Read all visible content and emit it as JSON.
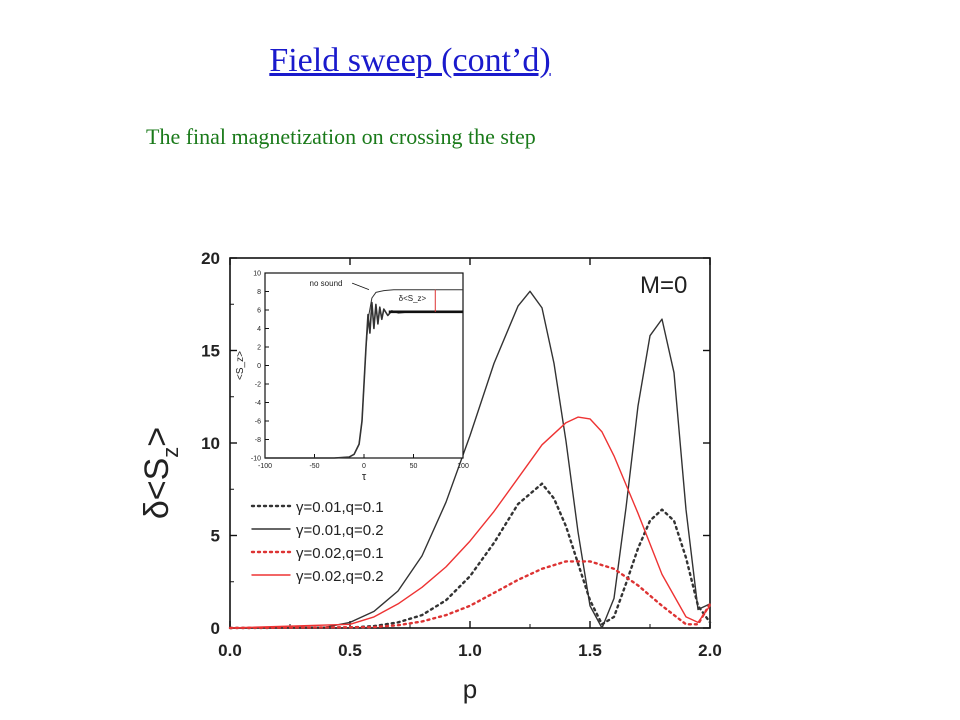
{
  "slide": {
    "title": "Field sweep (cont’d)",
    "subtitle": "The final magnetization on crossing the step"
  },
  "chart_data": [
    {
      "type": "line",
      "title": "",
      "annotation": "M=0",
      "xlabel": "p",
      "ylabel": "δ<S_z>",
      "ylabel_parts": {
        "main": "δ<S",
        "sub": "z",
        "tail": ">"
      },
      "xlim": [
        0.0,
        2.0
      ],
      "ylim": [
        0,
        20
      ],
      "xticks": [
        "0.0",
        "0.5",
        "1.0",
        "1.5",
        "2.0"
      ],
      "yticks": [
        "0",
        "5",
        "10",
        "15",
        "20"
      ],
      "legend_position": "center-left",
      "series": [
        {
          "name": "γ=0.01,q=0.1",
          "color": "#333333",
          "dash": "dotted",
          "x": [
            0.0,
            0.5,
            0.6,
            0.7,
            0.8,
            0.9,
            1.0,
            1.1,
            1.2,
            1.3,
            1.35,
            1.4,
            1.45,
            1.5,
            1.55,
            1.6,
            1.65,
            1.7,
            1.75,
            1.8,
            1.85,
            1.9,
            1.95,
            2.0
          ],
          "y": [
            0,
            0.02,
            0.1,
            0.3,
            0.7,
            1.5,
            2.8,
            4.6,
            6.7,
            7.8,
            7.0,
            5.5,
            3.5,
            1.5,
            0.2,
            0.6,
            2.4,
            4.3,
            5.8,
            6.4,
            5.8,
            3.8,
            1.2,
            0.3
          ]
        },
        {
          "name": "γ=0.01,q=0.2",
          "color": "#333333",
          "dash": "solid",
          "x": [
            0.0,
            0.4,
            0.5,
            0.6,
            0.7,
            0.8,
            0.9,
            1.0,
            1.1,
            1.2,
            1.25,
            1.3,
            1.35,
            1.4,
            1.45,
            1.5,
            1.55,
            1.6,
            1.65,
            1.7,
            1.75,
            1.8,
            1.85,
            1.9,
            1.95,
            2.0
          ],
          "y": [
            0,
            0.05,
            0.3,
            0.9,
            2.0,
            3.9,
            6.8,
            10.4,
            14.3,
            17.4,
            18.2,
            17.3,
            14.3,
            10.1,
            5.2,
            1.2,
            0.0,
            1.6,
            6.5,
            12.0,
            15.8,
            16.7,
            13.8,
            6.4,
            1.0,
            1.3
          ]
        },
        {
          "name": "γ=0.02,q=0.1",
          "color": "#dd3333",
          "dash": "dotted",
          "x": [
            0.0,
            0.6,
            0.7,
            0.8,
            0.9,
            1.0,
            1.1,
            1.2,
            1.3,
            1.4,
            1.5,
            1.6,
            1.7,
            1.8,
            1.9,
            1.95,
            2.0
          ],
          "y": [
            0,
            0.05,
            0.15,
            0.35,
            0.7,
            1.2,
            1.9,
            2.6,
            3.2,
            3.6,
            3.6,
            3.2,
            2.3,
            1.2,
            0.2,
            0.2,
            1.3
          ]
        },
        {
          "name": "γ=0.02,q=0.2",
          "color": "#ee3333",
          "dash": "solid",
          "x": [
            0.0,
            0.5,
            0.6,
            0.7,
            0.8,
            0.9,
            1.0,
            1.1,
            1.2,
            1.3,
            1.4,
            1.45,
            1.5,
            1.55,
            1.6,
            1.7,
            1.8,
            1.9,
            1.95,
            2.0
          ],
          "y": [
            0,
            0.2,
            0.6,
            1.3,
            2.2,
            3.3,
            4.7,
            6.3,
            8.1,
            9.9,
            11.1,
            11.4,
            11.3,
            10.6,
            9.3,
            6.2,
            2.9,
            0.6,
            0.3,
            1.2
          ]
        }
      ]
    },
    {
      "type": "line",
      "role": "inset",
      "title": "",
      "xlabel": "τ",
      "ylabel": "<S_z>",
      "xlim": [
        -100,
        100
      ],
      "ylim": [
        -10,
        10
      ],
      "xticks": [
        "-100",
        "-50",
        "0",
        "50",
        "100"
      ],
      "yticks": [
        "10",
        "8",
        "6",
        "4",
        "2",
        "0",
        "-2",
        "-4",
        "-6",
        "-8",
        "-10"
      ],
      "annotations": [
        "no sound",
        "δ<S_z>"
      ],
      "series": [
        {
          "name": "no sound",
          "color": "#333333",
          "dash": "solid",
          "x": [
            -100,
            -30,
            -15,
            -10,
            -5,
            -2,
            0,
            2,
            5,
            8,
            12,
            20,
            30,
            50,
            100
          ],
          "y": [
            -10,
            -10,
            -9.9,
            -9.6,
            -8.5,
            -6,
            -2,
            2,
            5.5,
            7.3,
            7.9,
            8.1,
            8.2,
            8.2,
            8.2
          ]
        },
        {
          "name": "",
          "color": "#333333",
          "dash": "solid",
          "x": [
            -100,
            -30,
            -15,
            -10,
            -5,
            -2,
            0,
            2,
            4,
            6,
            8,
            10,
            12,
            14,
            16,
            18,
            20,
            24,
            28,
            35,
            45,
            60,
            100
          ],
          "y": [
            -10,
            -10,
            -9.9,
            -9.6,
            -8.5,
            -6,
            -2,
            2,
            5.5,
            3.5,
            6.8,
            4.0,
            6.6,
            4.5,
            6.3,
            5.0,
            6.1,
            5.4,
            5.9,
            5.7,
            5.8,
            5.8,
            5.8
          ]
        }
      ]
    }
  ]
}
